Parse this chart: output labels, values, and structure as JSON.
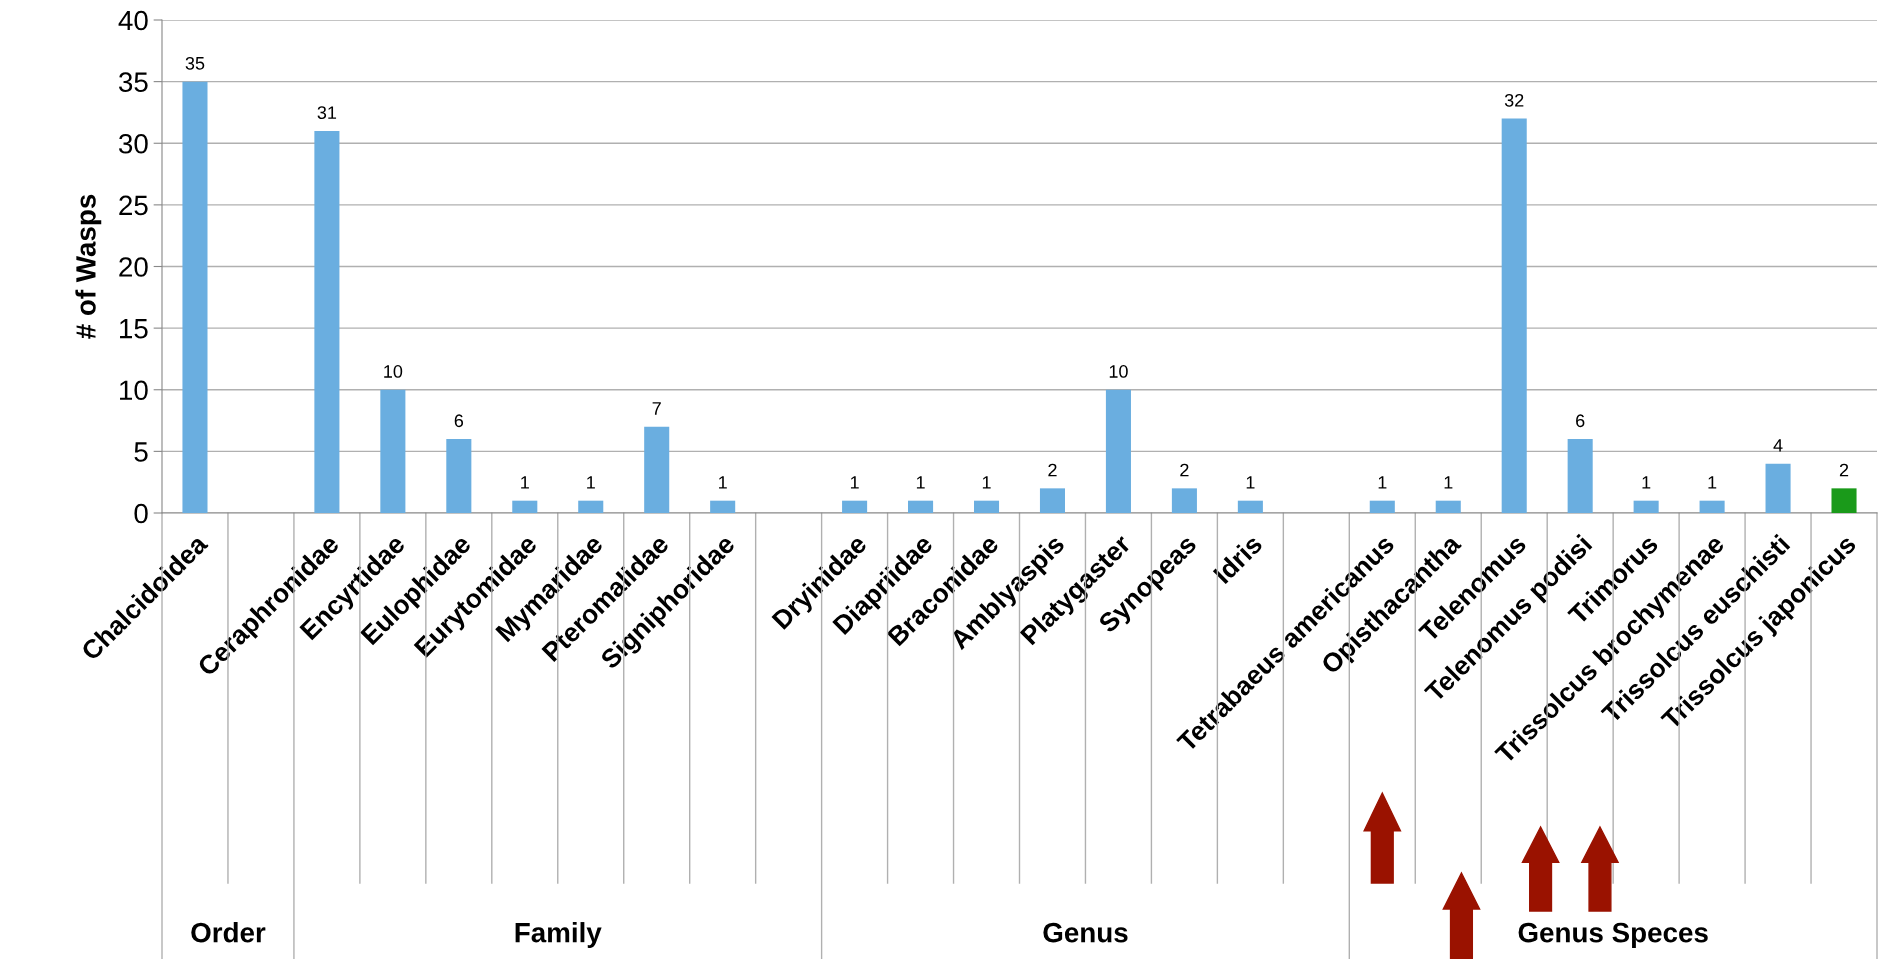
{
  "chart_data": {
    "type": "bar",
    "categories": [
      "Chalcidoidea",
      null,
      "Ceraphronidae",
      "Encyrtidae",
      "Eulophidae",
      "Eurytomidae",
      "Mymaridae",
      "Pteromalidae",
      "Signiphoridae",
      null,
      "Dryinidae",
      "Diapriidae",
      "Braconidae",
      "Amblyaspis",
      "Platygaster",
      "Synopeas",
      "Idris",
      null,
      "Tetrabaeus americanus",
      "Opisthacantha",
      "Telenomus",
      "Telenomus podisi",
      "Trimorus",
      "Trissolcus brochymenae",
      "Trissolcus euschisti",
      "Trissolcus japonicus"
    ],
    "values": [
      35,
      null,
      31,
      10,
      6,
      1,
      1,
      7,
      1,
      null,
      1,
      1,
      1,
      2,
      10,
      2,
      1,
      null,
      1,
      1,
      32,
      6,
      1,
      1,
      4,
      2
    ],
    "colors": [
      "#6aaee0",
      "#6aaee0",
      "#6aaee0",
      "#6aaee0",
      "#6aaee0",
      "#6aaee0",
      "#6aaee0",
      "#6aaee0",
      "#6aaee0",
      "#6aaee0",
      "#6aaee0",
      "#6aaee0",
      "#6aaee0",
      "#6aaee0",
      "#6aaee0",
      "#6aaee0",
      "#6aaee0",
      "#6aaee0",
      "#6aaee0",
      "#6aaee0",
      "#6aaee0",
      "#6aaee0",
      "#6aaee0",
      "#6aaee0",
      "#6aaee0",
      "#1a9a1a"
    ],
    "ylabel": "# of Wasps",
    "ylim": [
      0,
      40
    ],
    "yticks": [
      0,
      5,
      10,
      15,
      20,
      25,
      30,
      35,
      40
    ],
    "grid": "y",
    "data_labels": true,
    "annotations": [
      "Order",
      "Family",
      "Genus",
      "Genus Speces"
    ]
  }
}
